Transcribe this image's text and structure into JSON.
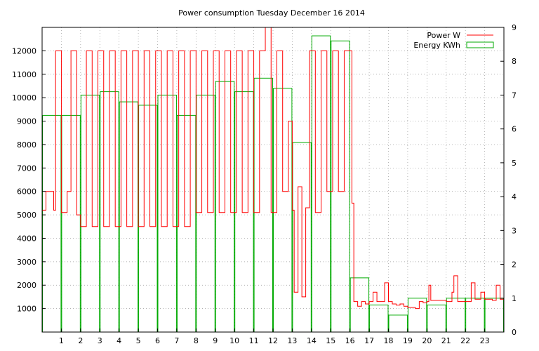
{
  "chart_data": {
    "type": "bar+line",
    "title": "Power consumption Tuesday December 16 2014",
    "xlabel": "",
    "ylabel": "",
    "y2label": "",
    "grid": true,
    "legend_position": "top-right",
    "xlim": [
      0,
      24
    ],
    "ylim": [
      0,
      13000
    ],
    "y2lim": [
      0,
      9
    ],
    "x_ticks": [
      1,
      2,
      3,
      4,
      5,
      6,
      7,
      8,
      9,
      10,
      11,
      12,
      13,
      14,
      15,
      16,
      17,
      18,
      19,
      20,
      21,
      22,
      23
    ],
    "y_ticks": [
      1000,
      2000,
      3000,
      4000,
      5000,
      6000,
      7000,
      8000,
      9000,
      10000,
      11000,
      12000
    ],
    "y2_ticks": [
      0,
      1,
      2,
      3,
      4,
      5,
      6,
      7,
      8,
      9
    ],
    "series": [
      {
        "name": "Power W",
        "color": "#ff0000",
        "axis": "y",
        "type": "line",
        "points": [
          [
            0,
            5200
          ],
          [
            0.2,
            6000
          ],
          [
            0.6,
            5200
          ],
          [
            0.7,
            12000
          ],
          [
            1.0,
            5100
          ],
          [
            1.3,
            6000
          ],
          [
            1.5,
            12000
          ],
          [
            1.8,
            5000
          ],
          [
            2.0,
            4500
          ],
          [
            2.3,
            12000
          ],
          [
            2.6,
            4500
          ],
          [
            2.9,
            12000
          ],
          [
            3.2,
            4500
          ],
          [
            3.5,
            12000
          ],
          [
            3.8,
            4500
          ],
          [
            4.1,
            12000
          ],
          [
            4.4,
            4500
          ],
          [
            4.7,
            12000
          ],
          [
            5.0,
            4500
          ],
          [
            5.3,
            12000
          ],
          [
            5.6,
            4500
          ],
          [
            5.9,
            12000
          ],
          [
            6.2,
            4500
          ],
          [
            6.5,
            12000
          ],
          [
            6.8,
            4500
          ],
          [
            7.1,
            12000
          ],
          [
            7.4,
            4500
          ],
          [
            7.7,
            12000
          ],
          [
            8.0,
            5100
          ],
          [
            8.3,
            12000
          ],
          [
            8.6,
            5100
          ],
          [
            8.9,
            12000
          ],
          [
            9.2,
            5100
          ],
          [
            9.5,
            12000
          ],
          [
            9.8,
            5100
          ],
          [
            10.1,
            12000
          ],
          [
            10.4,
            5100
          ],
          [
            10.7,
            12000
          ],
          [
            11.0,
            5100
          ],
          [
            11.3,
            12000
          ],
          [
            11.6,
            13000
          ],
          [
            11.9,
            5100
          ],
          [
            12.2,
            12000
          ],
          [
            12.5,
            6000
          ],
          [
            12.8,
            9000
          ],
          [
            13.0,
            5200
          ],
          [
            13.1,
            1700
          ],
          [
            13.3,
            6200
          ],
          [
            13.5,
            1500
          ],
          [
            13.7,
            5300
          ],
          [
            13.9,
            12000
          ],
          [
            14.2,
            5100
          ],
          [
            14.5,
            12000
          ],
          [
            14.8,
            6000
          ],
          [
            15.1,
            12000
          ],
          [
            15.4,
            6000
          ],
          [
            15.7,
            12000
          ],
          [
            16.0,
            12000
          ],
          [
            16.1,
            5500
          ],
          [
            16.2,
            1300
          ],
          [
            16.4,
            1100
          ],
          [
            16.6,
            1300
          ],
          [
            16.8,
            1200
          ],
          [
            17.0,
            1300
          ],
          [
            17.2,
            1700
          ],
          [
            17.4,
            1300
          ],
          [
            17.6,
            1300
          ],
          [
            17.8,
            2100
          ],
          [
            18.0,
            1300
          ],
          [
            18.2,
            1200
          ],
          [
            18.4,
            1150
          ],
          [
            18.6,
            1200
          ],
          [
            18.8,
            1100
          ],
          [
            19.0,
            1050
          ],
          [
            19.2,
            1050
          ],
          [
            19.4,
            1000
          ],
          [
            19.6,
            1300
          ],
          [
            19.8,
            1250
          ],
          [
            20.0,
            1300
          ],
          [
            20.1,
            2000
          ],
          [
            20.2,
            1350
          ],
          [
            20.5,
            1350
          ],
          [
            21.0,
            1300
          ],
          [
            21.3,
            1700
          ],
          [
            21.4,
            2400
          ],
          [
            21.6,
            1300
          ],
          [
            22.0,
            1300
          ],
          [
            22.3,
            2100
          ],
          [
            22.5,
            1400
          ],
          [
            22.8,
            1700
          ],
          [
            23.0,
            1400
          ],
          [
            23.4,
            1350
          ],
          [
            23.6,
            2000
          ],
          [
            23.8,
            1400
          ],
          [
            24.0,
            1450
          ]
        ]
      },
      {
        "name": "Energy KWh",
        "color": "#00aa00",
        "axis": "y2",
        "type": "bar",
        "x": [
          0,
          1,
          2,
          3,
          4,
          5,
          6,
          7,
          8,
          9,
          10,
          11,
          12,
          13,
          14,
          15,
          16,
          17,
          18,
          19,
          20,
          21,
          22,
          23
        ],
        "values": [
          6.4,
          6.4,
          7.0,
          7.1,
          6.8,
          6.7,
          7.0,
          6.4,
          7.0,
          7.4,
          7.1,
          7.5,
          7.2,
          5.6,
          8.75,
          8.6,
          1.6,
          0.8,
          0.5,
          1.0,
          0.8,
          1.0,
          1.0,
          1.0
        ]
      }
    ]
  }
}
